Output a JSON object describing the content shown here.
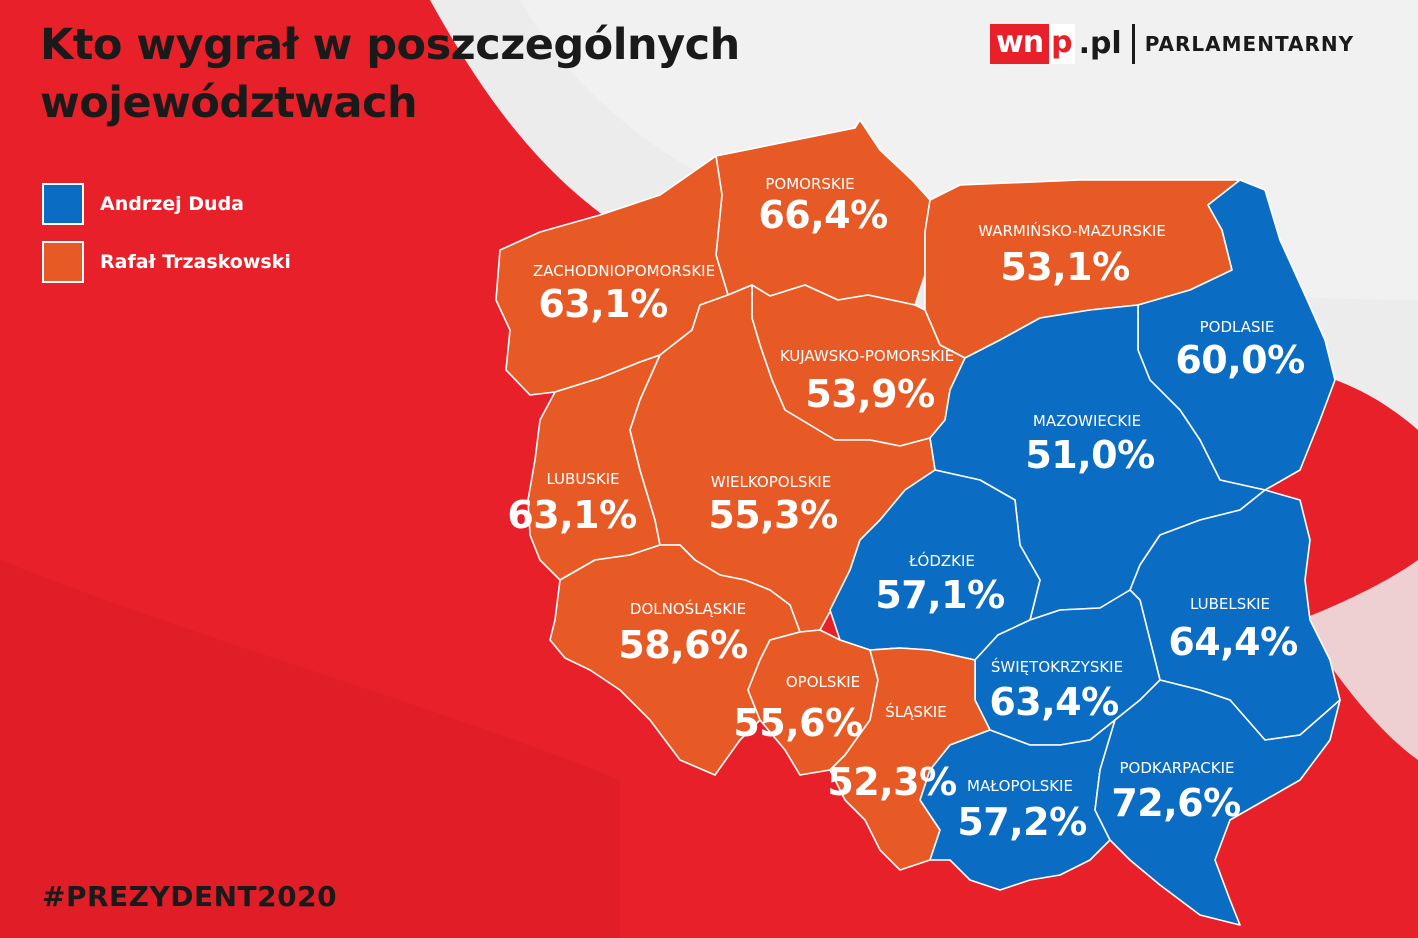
{
  "title": "Kto wygrał w poszczególnych województwach",
  "logo": {
    "brand_a": "wn",
    "brand_b": "p",
    "brand_c": ".pl",
    "section": "PARLAMENTARNY"
  },
  "hashtag": "#PREZYDENT2020",
  "colors": {
    "duda": "#0a6cc2",
    "trzaskowski": "#e85a25",
    "background": "#e8202a",
    "flag_white": "#ececec"
  },
  "legend": [
    {
      "label": "Andrzej Duda",
      "color": "#0a6cc2"
    },
    {
      "label": "Rafał Trzaskowski",
      "color": "#e85a25"
    }
  ],
  "regions": [
    {
      "name": "POMORSKIE",
      "value": "66,4%",
      "winner": "trzaskowski"
    },
    {
      "name": "WARMIŃSKO-MAZURSKIE",
      "value": "53,1%",
      "winner": "trzaskowski"
    },
    {
      "name": "ZACHODNIOPOMORSKIE",
      "value": "63,1%",
      "winner": "trzaskowski"
    },
    {
      "name": "PODLASIE",
      "value": "60,0%",
      "winner": "duda"
    },
    {
      "name": "KUJAWSKO-POMORSKIE",
      "value": "53,9%",
      "winner": "trzaskowski"
    },
    {
      "name": "MAZOWIECKIE",
      "value": "51,0%",
      "winner": "duda"
    },
    {
      "name": "LUBUSKIE",
      "value": "63,1%",
      "winner": "trzaskowski"
    },
    {
      "name": "WIELKOPOLSKIE",
      "value": "55,3%",
      "winner": "trzaskowski"
    },
    {
      "name": "ŁÓDZKIE",
      "value": "57,1%",
      "winner": "duda"
    },
    {
      "name": "LUBELSKIE",
      "value": "64,4%",
      "winner": "duda"
    },
    {
      "name": "DOLNOŚLĄSKIE",
      "value": "58,6%",
      "winner": "trzaskowski"
    },
    {
      "name": "OPOLSKIE",
      "value": "55,6%",
      "winner": "trzaskowski"
    },
    {
      "name": "ŚWIĘTOKRZYSKIE",
      "value": "63,4%",
      "winner": "duda"
    },
    {
      "name": "ŚLĄSKIE",
      "value": "52,3%",
      "winner": "trzaskowski"
    },
    {
      "name": "MAŁOPOLSKIE",
      "value": "57,2%",
      "winner": "duda"
    },
    {
      "name": "PODKARPACKIE",
      "value": "72,6%",
      "winner": "duda"
    }
  ]
}
